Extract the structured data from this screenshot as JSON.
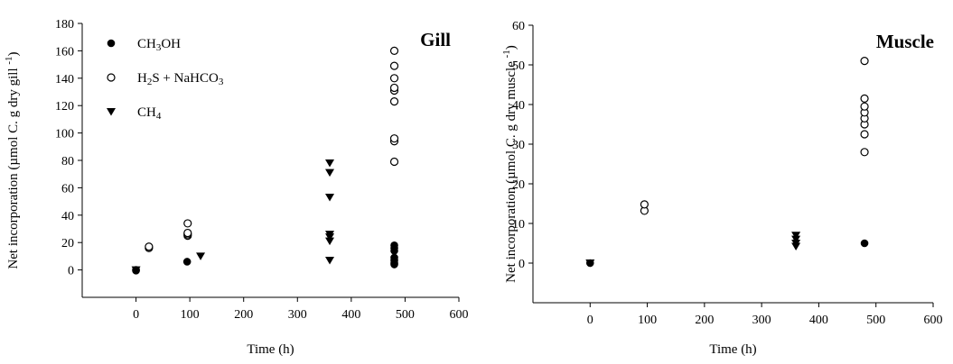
{
  "chart_data": [
    {
      "type": "scatter",
      "panel_label": "Gill",
      "xlabel": "Time (h)",
      "ylabel": "Net incorporation (µmol C. g dry gill ",
      "ylabel_sup": "-1",
      "ylabel_close": ")",
      "xlim": [
        -100,
        600
      ],
      "ylim": [
        -20,
        180
      ],
      "xticks": [
        0,
        100,
        200,
        300,
        400,
        500,
        600
      ],
      "yticks": [
        0,
        20,
        40,
        60,
        80,
        100,
        120,
        140,
        160,
        180
      ],
      "legend": {
        "position": "top-left",
        "visible": true
      },
      "series": [
        {
          "name": "CH3OH",
          "name_main": "CH",
          "name_sub": "3",
          "name_rest": "OH",
          "marker": "filled-circle",
          "points": [
            [
              0,
              0
            ],
            [
              0,
              -0.5
            ],
            [
              95,
              6
            ],
            [
              480,
              4
            ],
            [
              480,
              5
            ],
            [
              480,
              7
            ],
            [
              480,
              9
            ],
            [
              480,
              14
            ],
            [
              480,
              16
            ],
            [
              480,
              18
            ]
          ]
        },
        {
          "name": "H2S + NaHCO3",
          "name_main": "H",
          "name_sub": "2",
          "name_rest": "S + NaHCO",
          "name_sub2": "3",
          "marker": "open-circle",
          "points": [
            [
              24,
              16
            ],
            [
              24,
              17
            ],
            [
              96,
              25
            ],
            [
              96,
              26
            ],
            [
              96,
              27
            ],
            [
              96,
              34
            ],
            [
              480,
              79
            ],
            [
              480,
              94
            ],
            [
              480,
              96
            ],
            [
              480,
              123
            ],
            [
              480,
              131
            ],
            [
              480,
              133
            ],
            [
              480,
              140
            ],
            [
              480,
              149
            ],
            [
              480,
              160
            ]
          ]
        },
        {
          "name": "CH4",
          "name_main": "CH",
          "name_sub": "4",
          "name_rest": "",
          "marker": "filled-triangle-down",
          "points": [
            [
              0,
              0
            ],
            [
              120,
              10
            ],
            [
              360,
              7
            ],
            [
              360,
              21
            ],
            [
              360,
              24
            ],
            [
              360,
              26
            ],
            [
              360,
              53
            ],
            [
              360,
              71
            ],
            [
              360,
              78
            ]
          ]
        }
      ]
    },
    {
      "type": "scatter",
      "panel_label": "Muscle",
      "xlabel": "Time (h)",
      "ylabel": "Net incorporation (µmol C. g dry muscle ",
      "ylabel_sup": "-1",
      "ylabel_close": ")",
      "xlim": [
        -100,
        600
      ],
      "ylim": [
        -10,
        60
      ],
      "xticks": [
        0,
        100,
        200,
        300,
        400,
        500,
        600
      ],
      "yticks": [
        0,
        10,
        20,
        30,
        40,
        50,
        60
      ],
      "legend": {
        "visible": false
      },
      "series": [
        {
          "name": "CH3OH",
          "marker": "filled-circle",
          "points": [
            [
              0,
              0
            ],
            [
              480,
              5
            ]
          ]
        },
        {
          "name": "H2S + NaHCO3",
          "marker": "open-circle",
          "points": [
            [
              95,
              13.2
            ],
            [
              95,
              14.8
            ],
            [
              480,
              28
            ],
            [
              480,
              32.5
            ],
            [
              480,
              35
            ],
            [
              480,
              36.5
            ],
            [
              480,
              38
            ],
            [
              480,
              39.5
            ],
            [
              480,
              41.5
            ],
            [
              480,
              51
            ]
          ]
        },
        {
          "name": "CH4",
          "marker": "filled-triangle-down",
          "points": [
            [
              0,
              0
            ],
            [
              360,
              4.2
            ],
            [
              360,
              5
            ],
            [
              360,
              6
            ],
            [
              360,
              7
            ]
          ]
        }
      ]
    }
  ]
}
